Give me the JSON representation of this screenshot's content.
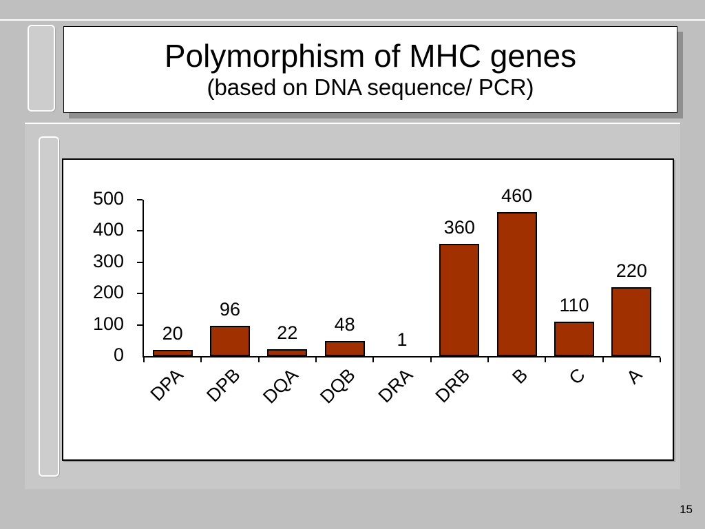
{
  "slide": {
    "page_number": "15"
  },
  "title": {
    "line1": "Polymorphism of MHC genes",
    "line2": "(based on DNA sequence/ PCR)"
  },
  "chart_data": {
    "type": "bar",
    "title": "",
    "xlabel": "",
    "ylabel": "",
    "categories": [
      "DPA",
      "DPB",
      "DQA",
      "DQB",
      "DRA",
      "DRB",
      "B",
      "C",
      "A"
    ],
    "values": [
      20,
      96,
      22,
      48,
      1,
      360,
      460,
      110,
      220
    ],
    "ylim": [
      0,
      500
    ],
    "yticks": [
      0,
      100,
      200,
      300,
      400,
      500
    ],
    "bar_color": "#a13000",
    "bar_border_color": "#000000",
    "grid": false,
    "legend": false
  }
}
